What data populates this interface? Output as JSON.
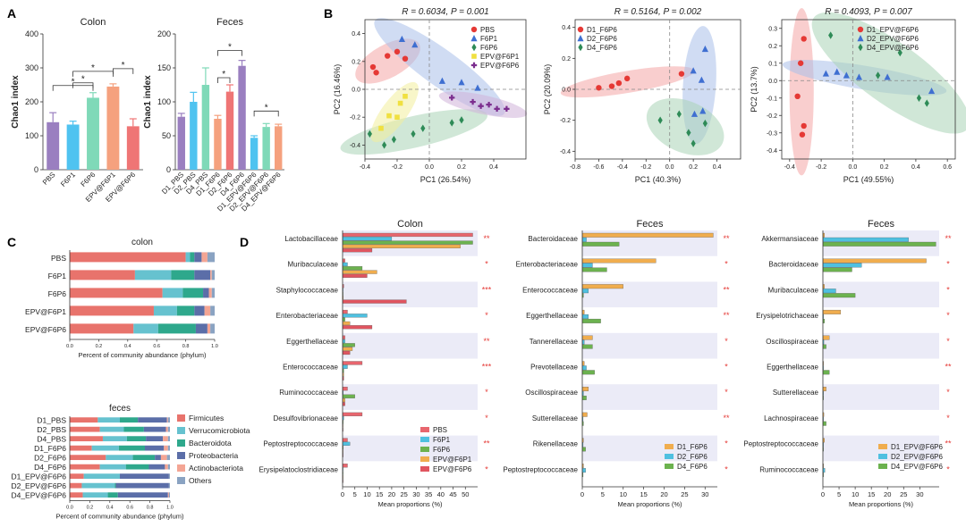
{
  "panel_letters": [
    "A",
    "B",
    "C",
    "D"
  ],
  "colors": {
    "PBS": "#9a7fc0",
    "F6P1": "#4fc3f0",
    "F6P6": "#7fd9b8",
    "EPV@F6P1": "#f5a17e",
    "EPV@F6P6": "#ef7575",
    "D1_PBS": "#9a7fc0",
    "D2_PBS": "#4fc3f0",
    "D4_PBS": "#7fd9b8",
    "D1_F6P6": "#f5a17e",
    "D2_F6P6": "#ef7575",
    "D4_F6P6": "#9a7fc0",
    "D1_EPV@F6P6": "#4fc3f0",
    "D2_EPV@F6P6": "#7fd9b8",
    "D4_EPV@F6P6": "#f5a17e"
  },
  "chart_data": [
    {
      "id": "A1",
      "type": "bar",
      "title": "Colon",
      "ylabel": "Chao1 index",
      "ylim": [
        0,
        400
      ],
      "yticks": [
        0,
        100,
        200,
        300,
        400
      ],
      "categories": [
        "PBS",
        "F6P1",
        "F6P6",
        "EPV@F6P1",
        "EPV@F6P6"
      ],
      "values": [
        140,
        133,
        212,
        245,
        128
      ],
      "errors": [
        28,
        10,
        15,
        8,
        22
      ],
      "significance": [
        {
          "pair": [
            0,
            2
          ],
          "label": "*"
        },
        {
          "pair": [
            1,
            2
          ],
          "label": "*"
        },
        {
          "pair": [
            1,
            3
          ],
          "label": "*"
        },
        {
          "pair": [
            3,
            4
          ],
          "label": "*"
        }
      ]
    },
    {
      "id": "A2",
      "type": "bar",
      "title": "Feces",
      "ylabel": "Chao1 index",
      "ylim": [
        0,
        200
      ],
      "yticks": [
        0,
        50,
        100,
        150,
        200
      ],
      "categories": [
        "D1_PBS",
        "D2_PBS",
        "D4_PBS",
        "D1_F6P6",
        "D2_F6P6",
        "D4_F6P6",
        "D1_EPV@F6P6",
        "D2_EPV@F6P6",
        "D4_EPV@F6P6"
      ],
      "values": [
        78,
        100,
        125,
        75,
        115,
        153,
        47,
        63,
        64
      ],
      "errors": [
        5,
        14,
        25,
        5,
        10,
        8,
        3,
        5,
        3
      ],
      "significance": [
        {
          "pair": [
            3,
            4
          ],
          "label": "*"
        },
        {
          "pair": [
            3,
            5
          ],
          "label": "*"
        },
        {
          "pair": [
            6,
            8
          ],
          "label": "*"
        }
      ]
    },
    {
      "id": "B1",
      "type": "scatter",
      "title": "R = 0.6034, P = 0.001",
      "xlabel": "PC1 (26.54%)",
      "ylabel": "PC2 (16.46%)",
      "xlim": [
        -0.4,
        0.6
      ],
      "ylim": [
        -0.5,
        0.5
      ],
      "xticks": [
        -0.4,
        -0.2,
        0.0,
        0.2,
        0.4
      ],
      "yticks": [
        -0.4,
        -0.2,
        0.0,
        0.2,
        0.4
      ],
      "series": [
        {
          "name": "PBS",
          "marker": "circle",
          "color": "#e53935",
          "points": [
            [
              -0.33,
              0.12
            ],
            [
              -0.35,
              0.16
            ],
            [
              -0.26,
              0.24
            ],
            [
              -0.2,
              0.27
            ],
            [
              -0.15,
              0.22
            ]
          ]
        },
        {
          "name": "F6P1",
          "marker": "triangle",
          "color": "#3f6fd1",
          "points": [
            [
              -0.17,
              0.36
            ],
            [
              -0.09,
              0.32
            ],
            [
              0.08,
              0.06
            ],
            [
              0.2,
              0.05
            ],
            [
              0.3,
              0.01
            ]
          ]
        },
        {
          "name": "F6P6",
          "marker": "diamond",
          "color": "#2e8b57",
          "points": [
            [
              -0.37,
              -0.32
            ],
            [
              -0.28,
              -0.4
            ],
            [
              -0.22,
              -0.36
            ],
            [
              -0.1,
              -0.32
            ],
            [
              -0.04,
              -0.28
            ],
            [
              0.14,
              -0.24
            ],
            [
              0.2,
              -0.22
            ]
          ]
        },
        {
          "name": "EPV@F6P1",
          "marker": "square",
          "color": "#f0e040",
          "points": [
            [
              -0.3,
              -0.28
            ],
            [
              -0.25,
              -0.19
            ],
            [
              -0.2,
              -0.2
            ],
            [
              -0.18,
              -0.1
            ],
            [
              -0.15,
              -0.05
            ]
          ]
        },
        {
          "name": "EPV@F6P6",
          "marker": "cross",
          "color": "#7b2d8e",
          "points": [
            [
              0.14,
              -0.06
            ],
            [
              0.27,
              -0.09
            ],
            [
              0.32,
              -0.12
            ],
            [
              0.37,
              -0.11
            ],
            [
              0.42,
              -0.14
            ],
            [
              0.48,
              -0.14
            ]
          ]
        }
      ]
    },
    {
      "id": "B2",
      "type": "scatter",
      "title": "R = 0.5164, P = 0.002",
      "xlabel": "PC1 (40.3%)",
      "ylabel": "PC2 (20.09%)",
      "xlim": [
        -0.8,
        0.6
      ],
      "ylim": [
        -0.45,
        0.45
      ],
      "xticks": [
        -0.8,
        -0.6,
        -0.4,
        -0.2,
        0.0,
        0.2,
        0.4
      ],
      "yticks": [
        -0.4,
        -0.2,
        0.0,
        0.2,
        0.4
      ],
      "series": [
        {
          "name": "D1_F6P6",
          "marker": "circle",
          "color": "#e53935",
          "points": [
            [
              -0.6,
              0.01
            ],
            [
              -0.49,
              0.02
            ],
            [
              -0.43,
              0.04
            ],
            [
              -0.36,
              0.07
            ],
            [
              0.1,
              0.1
            ]
          ]
        },
        {
          "name": "D2_F6P6",
          "marker": "triangle",
          "color": "#3f6fd1",
          "points": [
            [
              0.2,
              0.12
            ],
            [
              0.3,
              0.26
            ],
            [
              0.27,
              0.06
            ],
            [
              0.21,
              -0.16
            ],
            [
              0.28,
              -0.14
            ]
          ]
        },
        {
          "name": "D4_F6P6",
          "marker": "diamond",
          "color": "#2e8b57",
          "points": [
            [
              -0.08,
              -0.2
            ],
            [
              0.08,
              -0.16
            ],
            [
              0.16,
              -0.28
            ],
            [
              0.2,
              -0.35
            ],
            [
              0.3,
              -0.22
            ]
          ]
        }
      ]
    },
    {
      "id": "B3",
      "type": "scatter",
      "title": "R = 0.4093, P = 0.007",
      "xlabel": "PC1 (49.55%)",
      "ylabel": "PC2 (13.7%)",
      "xlim": [
        -0.45,
        0.65
      ],
      "ylim": [
        -0.45,
        0.35
      ],
      "xticks": [
        -0.4,
        -0.2,
        0.0,
        0.2,
        0.4,
        0.6
      ],
      "yticks": [
        -0.4,
        -0.3,
        -0.2,
        -0.1,
        0.0,
        0.1,
        0.2,
        0.3
      ],
      "series": [
        {
          "name": "D1_EPV@F6P6",
          "marker": "circle",
          "color": "#e53935",
          "points": [
            [
              -0.31,
              0.24
            ],
            [
              -0.33,
              0.1
            ],
            [
              -0.35,
              -0.09
            ],
            [
              -0.31,
              -0.26
            ],
            [
              -0.32,
              -0.31
            ]
          ]
        },
        {
          "name": "D2_EPV@F6P6",
          "marker": "triangle",
          "color": "#3f6fd1",
          "points": [
            [
              -0.17,
              0.04
            ],
            [
              -0.1,
              0.05
            ],
            [
              -0.04,
              0.03
            ],
            [
              0.04,
              0.02
            ],
            [
              0.22,
              0.02
            ],
            [
              0.5,
              -0.06
            ]
          ]
        },
        {
          "name": "D4_EPV@F6P6",
          "marker": "diamond",
          "color": "#2e8b57",
          "points": [
            [
              -0.14,
              0.26
            ],
            [
              0.16,
              0.03
            ],
            [
              0.3,
              0.16
            ],
            [
              0.42,
              -0.1
            ],
            [
              0.47,
              -0.13
            ]
          ]
        }
      ]
    },
    {
      "id": "C1",
      "type": "stacked-bar",
      "title": "colon",
      "xlabel": "Percent of community abundance (phylum)",
      "xticks": [
        "0.0",
        "0.2",
        "0.4",
        "0.6",
        "0.8",
        "1.0"
      ],
      "categories": [
        "PBS",
        "F6P1",
        "F6P6",
        "EPV@F6P1",
        "EPV@F6P6"
      ],
      "series": [
        {
          "name": "Firmicutes",
          "values": [
            0.8,
            0.45,
            0.64,
            0.58,
            0.44
          ]
        },
        {
          "name": "Verrucomicrobiota",
          "values": [
            0.03,
            0.25,
            0.14,
            0.16,
            0.17
          ]
        },
        {
          "name": "Bacteroidota",
          "values": [
            0.03,
            0.16,
            0.14,
            0.12,
            0.26
          ]
        },
        {
          "name": "Proteobacteria",
          "values": [
            0.05,
            0.11,
            0.04,
            0.07,
            0.08
          ]
        },
        {
          "name": "Actinobacteriota",
          "values": [
            0.04,
            0.01,
            0.02,
            0.04,
            0.02
          ]
        },
        {
          "name": "Others",
          "values": [
            0.05,
            0.02,
            0.02,
            0.03,
            0.03
          ]
        }
      ]
    },
    {
      "id": "C2",
      "type": "stacked-bar",
      "title": "feces",
      "xlabel": "Percent of community abundance (phylum)",
      "xticks": [
        "0.0",
        "0.2",
        "0.4",
        "0.6",
        "0.8",
        "1.0"
      ],
      "categories": [
        "D1_PBS",
        "D2_PBS",
        "D4_PBS",
        "D1_F6P6",
        "D2_F6P6",
        "D4_F6P6",
        "D1_EPV@F6P6",
        "D2_EPV@F6P6",
        "D4_EPV@F6P6"
      ],
      "series": [
        {
          "name": "Firmicutes",
          "values": [
            0.28,
            0.3,
            0.33,
            0.22,
            0.36,
            0.3,
            0.14,
            0.12,
            0.13
          ]
        },
        {
          "name": "Verrucomicrobiota",
          "values": [
            0.22,
            0.24,
            0.24,
            0.27,
            0.27,
            0.26,
            0.36,
            0.33,
            0.25
          ]
        },
        {
          "name": "Bacteroidota",
          "values": [
            0.18,
            0.2,
            0.19,
            0.26,
            0.22,
            0.23,
            0.0,
            0.01,
            0.1
          ]
        },
        {
          "name": "Proteobacteria",
          "values": [
            0.29,
            0.22,
            0.17,
            0.19,
            0.06,
            0.16,
            0.49,
            0.53,
            0.5
          ]
        },
        {
          "name": "Actinobacteriota",
          "values": [
            0.01,
            0.02,
            0.05,
            0.04,
            0.06,
            0.03,
            0.0,
            0.0,
            0.01
          ]
        },
        {
          "name": "Others",
          "values": [
            0.02,
            0.02,
            0.02,
            0.02,
            0.03,
            0.02,
            0.01,
            0.01,
            0.01
          ]
        }
      ],
      "legend_colors": [
        "#e8736c",
        "#66c2cf",
        "#2ea88c",
        "#5b6ea8",
        "#f4a594",
        "#8aa3c2"
      ]
    },
    {
      "id": "D1",
      "type": "horizontal-bar",
      "title": "Colon",
      "xlabel": "Mean proportions (%)",
      "xlim": [
        0,
        55
      ],
      "xticks": [
        0,
        5,
        10,
        15,
        20,
        25,
        30,
        35,
        40,
        45,
        50
      ],
      "series_names": [
        "PBS",
        "F6P1",
        "F6P6",
        "EPV@F6P1",
        "EPV@F6P6"
      ],
      "series_colors": [
        "#e8666e",
        "#4fc0e0",
        "#6cb24f",
        "#f0ad4e",
        "#e05560"
      ],
      "categories": [
        "Lactobacillaceae",
        "Muribaculaceae",
        "Staphylococcaceae",
        "Enterobacteriaceae",
        "Eggerthellaceae",
        "Enterococcaceae",
        "Ruminococcaceae",
        "Desulfovibrionaceae",
        "Peptostreptococcaceae",
        "Erysipelatoclostridiaceae"
      ],
      "significance": [
        "**",
        "*",
        "***",
        "*",
        "**",
        "***",
        "*",
        "*",
        "**",
        "*"
      ],
      "values": [
        [
          53,
          20,
          53,
          48,
          12
        ],
        [
          1,
          2,
          8,
          14,
          10
        ],
        [
          0.5,
          0.2,
          0.2,
          0.3,
          26
        ],
        [
          2,
          10,
          1,
          3,
          12
        ],
        [
          1,
          1,
          5,
          4,
          3
        ],
        [
          8,
          2,
          0.5,
          0.5,
          0.5
        ],
        [
          2,
          0.3,
          5,
          1,
          1
        ],
        [
          8,
          0.5,
          0.3,
          0.2,
          0.2
        ],
        [
          2,
          3,
          0.3,
          0.2,
          0.2
        ],
        [
          2,
          0.1,
          0.1,
          0.1,
          0.1
        ]
      ]
    },
    {
      "id": "D2",
      "type": "horizontal-bar",
      "title": "Feces",
      "xlabel": "Mean proportions (%)",
      "xlim": [
        0,
        33
      ],
      "xticks": [
        0,
        5,
        10,
        15,
        20,
        25,
        30
      ],
      "series_names": [
        "D1_F6P6",
        "D2_F6P6",
        "D4_F6P6"
      ],
      "series_colors": [
        "#f0ad4e",
        "#4fc0e0",
        "#6cb24f"
      ],
      "categories": [
        "Bacteroidaceae",
        "Enterobacteriaceae",
        "Enterococcaceae",
        "Eggerthellaceae",
        "Tannerellaceae",
        "Prevotellaceae",
        "Oscillospiraceae",
        "Sutterellaceae",
        "Rikenellaceae",
        "Peptostreptococcaceae"
      ],
      "significance": [
        "**",
        "*",
        "**",
        "**",
        "*",
        "*",
        "*",
        "**",
        "*",
        "*"
      ],
      "values": [
        [
          32,
          1,
          9
        ],
        [
          18,
          2.5,
          6
        ],
        [
          10,
          1.5,
          0.3
        ],
        [
          0.5,
          1.5,
          4.5
        ],
        [
          2.5,
          0.5,
          2.5
        ],
        [
          0.5,
          1,
          3
        ],
        [
          1.5,
          0.3,
          1
        ],
        [
          1.2,
          0.2,
          0.3
        ],
        [
          0.3,
          0.2,
          0.8
        ],
        [
          0.3,
          0.8,
          0.2
        ]
      ]
    },
    {
      "id": "D3",
      "type": "horizontal-bar",
      "title": "Feces",
      "xlabel": "Mean proportions (%)",
      "xlim": [
        0,
        36
      ],
      "xticks": [
        0,
        5,
        10,
        15,
        20,
        25,
        30
      ],
      "series_names": [
        "D1_EPV@F6P6",
        "D2_EPV@F6P6",
        "D4_EPV@F6P6"
      ],
      "series_colors": [
        "#f0ad4e",
        "#4fc0e0",
        "#6cb24f"
      ],
      "categories": [
        "Akkermansiaceae",
        "Bacteroidaceae",
        "Muribaculaceae",
        "Erysipelotrichaceae",
        "Oscillospiraceae",
        "Eggerthellaceae",
        "Sutterellaceae",
        "Lachnospiraceae",
        "Peptostreptococcaceae",
        "Ruminococcaceae"
      ],
      "significance": [
        "**",
        "*",
        "*",
        "*",
        "*",
        "**",
        "*",
        "*",
        "**",
        "*"
      ],
      "values": [
        [
          0.5,
          26.5,
          35
        ],
        [
          32,
          12,
          9
        ],
        [
          0.5,
          4,
          10
        ],
        [
          5.5,
          0.2,
          0.5
        ],
        [
          2,
          0.3,
          1
        ],
        [
          0.2,
          0.2,
          2
        ],
        [
          1,
          0.2,
          0.2
        ],
        [
          0.3,
          0.2,
          1
        ],
        [
          0.5,
          0.2,
          0.2
        ],
        [
          0.2,
          0.6,
          0.2
        ]
      ]
    }
  ]
}
